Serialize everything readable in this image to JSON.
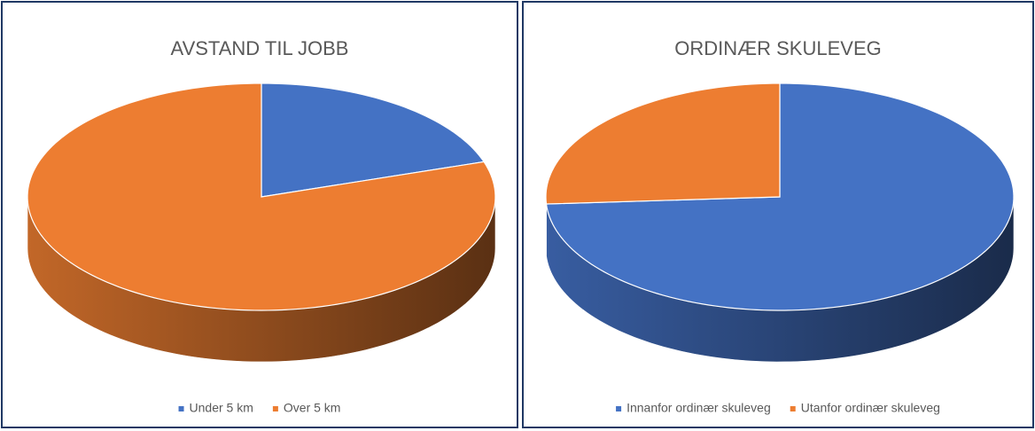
{
  "chart_data": [
    {
      "type": "pie3d",
      "title": "AVSTAND TIL JOBB",
      "categories": [
        "Under 5 km",
        "Over 5 km"
      ],
      "values": [
        20,
        80
      ],
      "colors": [
        "#4472c4",
        "#ed7d31"
      ],
      "legend": "bottom"
    },
    {
      "type": "pie3d",
      "title": "ORDINÆR SKULEVEG",
      "categories": [
        "Innanfor ordinær skuleveg",
        "Utanfor ordinær skuleveg"
      ],
      "values": [
        74,
        26
      ],
      "colors": [
        "#4472c4",
        "#ed7d31"
      ],
      "legend": "bottom"
    }
  ]
}
